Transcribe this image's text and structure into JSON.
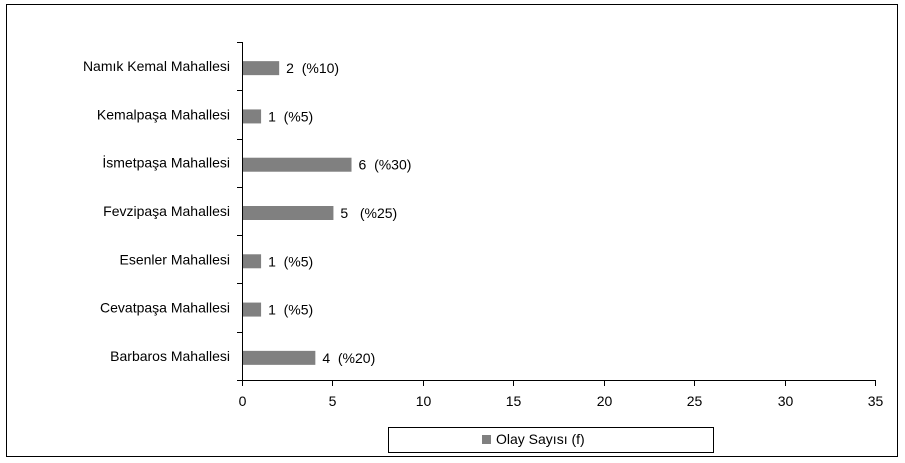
{
  "chart_data": {
    "type": "bar",
    "orientation": "horizontal",
    "categories": [
      "Namık Kemal Mahallesi",
      "Kemalpaşa Mahallesi",
      "İsmetpaşa Mahallesi",
      "Fevzipaşa Mahallesi",
      "Esenler Mahallesi",
      "Cevatpaşa Mahallesi",
      "Barbaros Mahallesi"
    ],
    "series": [
      {
        "name": "Olay Sayısı (f)",
        "values": [
          2,
          1,
          6,
          5,
          1,
          1,
          4
        ],
        "data_labels": [
          "2  (%10)",
          "1  (%5)",
          "6  (%30)",
          "5   (%25)",
          "1  (%5)",
          "1  (%5)",
          "4  (%20)"
        ]
      }
    ],
    "x_ticks": [
      0,
      5,
      10,
      15,
      20,
      25,
      30,
      35
    ],
    "xlim": [
      0,
      35
    ],
    "grid": false,
    "legend_position": "bottom",
    "bar_color": "#808080",
    "title": "",
    "xlabel": "",
    "ylabel": ""
  }
}
